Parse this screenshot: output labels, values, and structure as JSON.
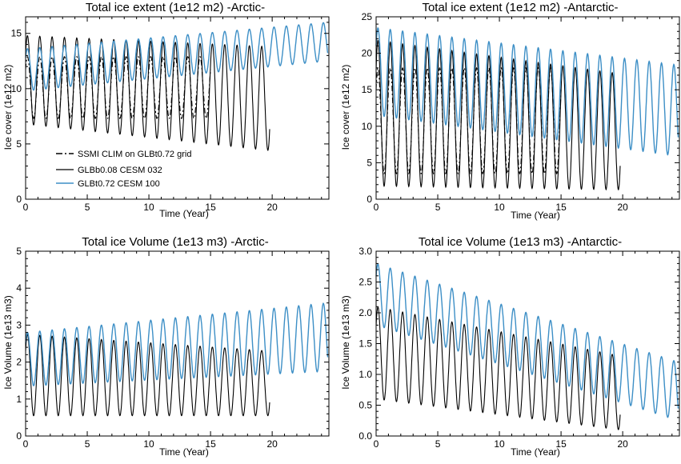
{
  "colors": {
    "black": "#000000",
    "blue": "#3d8fc6"
  },
  "legend": [
    {
      "label": "SSMI CLIM on GLBt0.72 grid",
      "style": "dash-dot",
      "color": "#000000"
    },
    {
      "label": "GLBb0.08 CESM 032",
      "style": "solid",
      "color": "#000000"
    },
    {
      "label": "GLBt0.72 CESM 100",
      "style": "solid",
      "color": "#3d8fc6"
    }
  ],
  "chart_data": [
    {
      "type": "line",
      "title": "Total ice extent (1e12 m2)   -Arctic-",
      "xlabel": "Time (Year)",
      "ylabel": "Ice cover (1e12 m2)",
      "xlim": [
        0,
        24.6
      ],
      "ylim": [
        0,
        16.5
      ],
      "xticks": [
        0,
        5,
        10,
        15,
        20
      ],
      "yticks": [
        0,
        5,
        10,
        15
      ],
      "yticklabels": [
        "0",
        "5",
        "10",
        "15"
      ],
      "legend_position": "lower-left",
      "series": [
        {
          "name": "SSMI CLIM on GLBt0.72 grid",
          "style": "dash-dot",
          "color": "#000000",
          "x_range": [
            0,
            15
          ],
          "seasonal_max": [
            12.9,
            12.9
          ],
          "seasonal_min": [
            7.3,
            7.3
          ]
        },
        {
          "name": "GLBb0.08 CESM 032",
          "style": "solid",
          "color": "#000000",
          "x_range": [
            0,
            19.8
          ],
          "seasonal_max": [
            14.8,
            13.8
          ],
          "seasonal_min": [
            6.8,
            4.4
          ]
        },
        {
          "name": "GLBt0.72 CESM 100",
          "style": "solid",
          "color": "#3d8fc6",
          "x_range": [
            0,
            24.5
          ],
          "seasonal_max": [
            13.6,
            16.0
          ],
          "seasonal_min": [
            9.8,
            12.5
          ]
        }
      ]
    },
    {
      "type": "line",
      "title": "Total ice extent (1e12 m2)   -Antarctic-",
      "xlabel": "Time (Year)",
      "ylabel": "Ice cover (1e12 m2)",
      "xlim": [
        0,
        24.6
      ],
      "ylim": [
        0,
        25
      ],
      "xticks": [
        0,
        5,
        10,
        15,
        20
      ],
      "yticks": [
        0,
        5,
        10,
        15,
        20,
        25
      ],
      "yticklabels": [
        "0",
        "5",
        "10",
        "15",
        "20",
        "25"
      ],
      "series": [
        {
          "name": "SSMI CLIM on GLBt0.72 grid",
          "style": "dash-dot",
          "color": "#000000",
          "x_range": [
            0,
            15
          ],
          "seasonal_max": [
            18.0,
            18.0
          ],
          "seasonal_min": [
            3.5,
            3.5
          ]
        },
        {
          "name": "GLBb0.08 CESM 032",
          "style": "solid",
          "color": "#000000",
          "x_range": [
            0,
            19.8
          ],
          "seasonal_max": [
            21.8,
            17.2
          ],
          "seasonal_min": [
            1.8,
            1.3
          ]
        },
        {
          "name": "GLBt0.72 CESM 100",
          "style": "solid",
          "color": "#3d8fc6",
          "x_range": [
            0,
            24.5
          ],
          "seasonal_max": [
            23.5,
            18.4
          ],
          "seasonal_min": [
            11.5,
            5.9
          ]
        }
      ]
    },
    {
      "type": "line",
      "title": "Total ice Volume (1e13 m3)   -Arctic-",
      "xlabel": "Time (Year)",
      "ylabel": "Ice Volume (1e13 m3)",
      "xlim": [
        0,
        24.6
      ],
      "ylim": [
        0,
        5
      ],
      "xticks": [
        0,
        5,
        10,
        15,
        20
      ],
      "yticks": [
        0,
        1,
        2,
        3,
        4,
        5
      ],
      "yticklabels": [
        "0",
        "1",
        "2",
        "3",
        "4",
        "5"
      ],
      "series": [
        {
          "name": "GLBb0.08 CESM 032",
          "style": "solid",
          "color": "#000000",
          "x_range": [
            0,
            19.8
          ],
          "seasonal_max": [
            2.75,
            2.3
          ],
          "seasonal_min": [
            0.55,
            0.55
          ]
        },
        {
          "name": "GLBt0.72 CESM 100",
          "style": "solid",
          "color": "#3d8fc6",
          "x_range": [
            0,
            24.5
          ],
          "seasonal_max": [
            2.8,
            3.6
          ],
          "seasonal_min": [
            1.35,
            1.75
          ]
        }
      ]
    },
    {
      "type": "line",
      "title": "Total ice Volume (1e13 m3)   -Antarctic-",
      "xlabel": "Time (Year)",
      "ylabel": "Ice Volume (1e13 m3)",
      "xlim": [
        0,
        24.6
      ],
      "ylim": [
        0,
        3
      ],
      "xticks": [
        0,
        5,
        10,
        15,
        20
      ],
      "yticks": [
        0,
        0.5,
        1,
        1.5,
        2,
        2.5,
        3
      ],
      "yticklabels": [
        "0.0",
        "0.5",
        "1.0",
        "1.5",
        "2.0",
        "2.5",
        "3.0"
      ],
      "series": [
        {
          "name": "GLBb0.08 CESM 032",
          "style": "solid",
          "color": "#000000",
          "x_range": [
            0,
            19.8
          ],
          "seasonal_max": [
            2.1,
            1.3
          ],
          "seasonal_min": [
            0.6,
            0.1
          ]
        },
        {
          "name": "GLBt0.72 CESM 100",
          "style": "solid",
          "color": "#3d8fc6",
          "x_range": [
            0,
            24.5
          ],
          "seasonal_max": [
            2.8,
            1.2
          ],
          "seasonal_min": [
            1.8,
            0.25
          ]
        }
      ]
    }
  ]
}
